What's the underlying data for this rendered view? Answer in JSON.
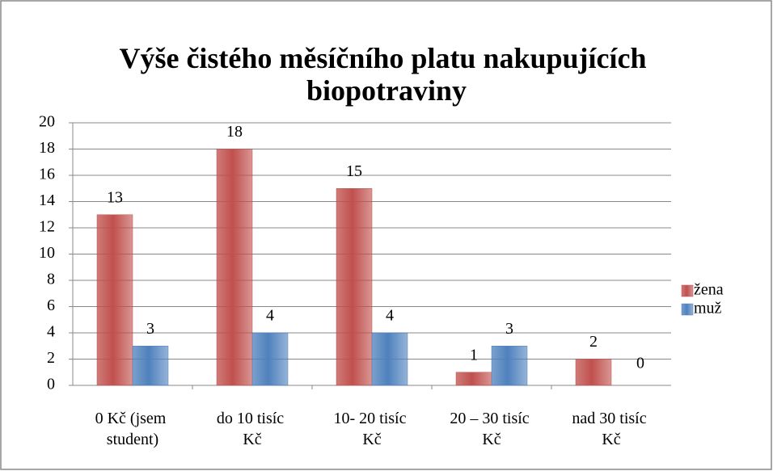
{
  "chart_data": {
    "type": "bar",
    "title": "Výše čistého měsíčního platu nakupujících biopotraviny",
    "categories": [
      "0 Kč (jsem student)",
      "do 10 tisíc Kč",
      "10- 20 tisíc Kč",
      "20 – 30 tisíc Kč",
      "nad 30 tisíc Kč"
    ],
    "series": [
      {
        "name": "žena",
        "color": "#c0504d",
        "values": [
          13,
          18,
          15,
          1,
          2
        ]
      },
      {
        "name": "muž",
        "color": "#4f81bd",
        "values": [
          3,
          4,
          4,
          3,
          0
        ]
      }
    ],
    "ylim": [
      0,
      20
    ],
    "yticks": [
      0,
      2,
      4,
      6,
      8,
      10,
      12,
      14,
      16,
      18,
      20
    ],
    "grid": true,
    "legend": "right"
  }
}
